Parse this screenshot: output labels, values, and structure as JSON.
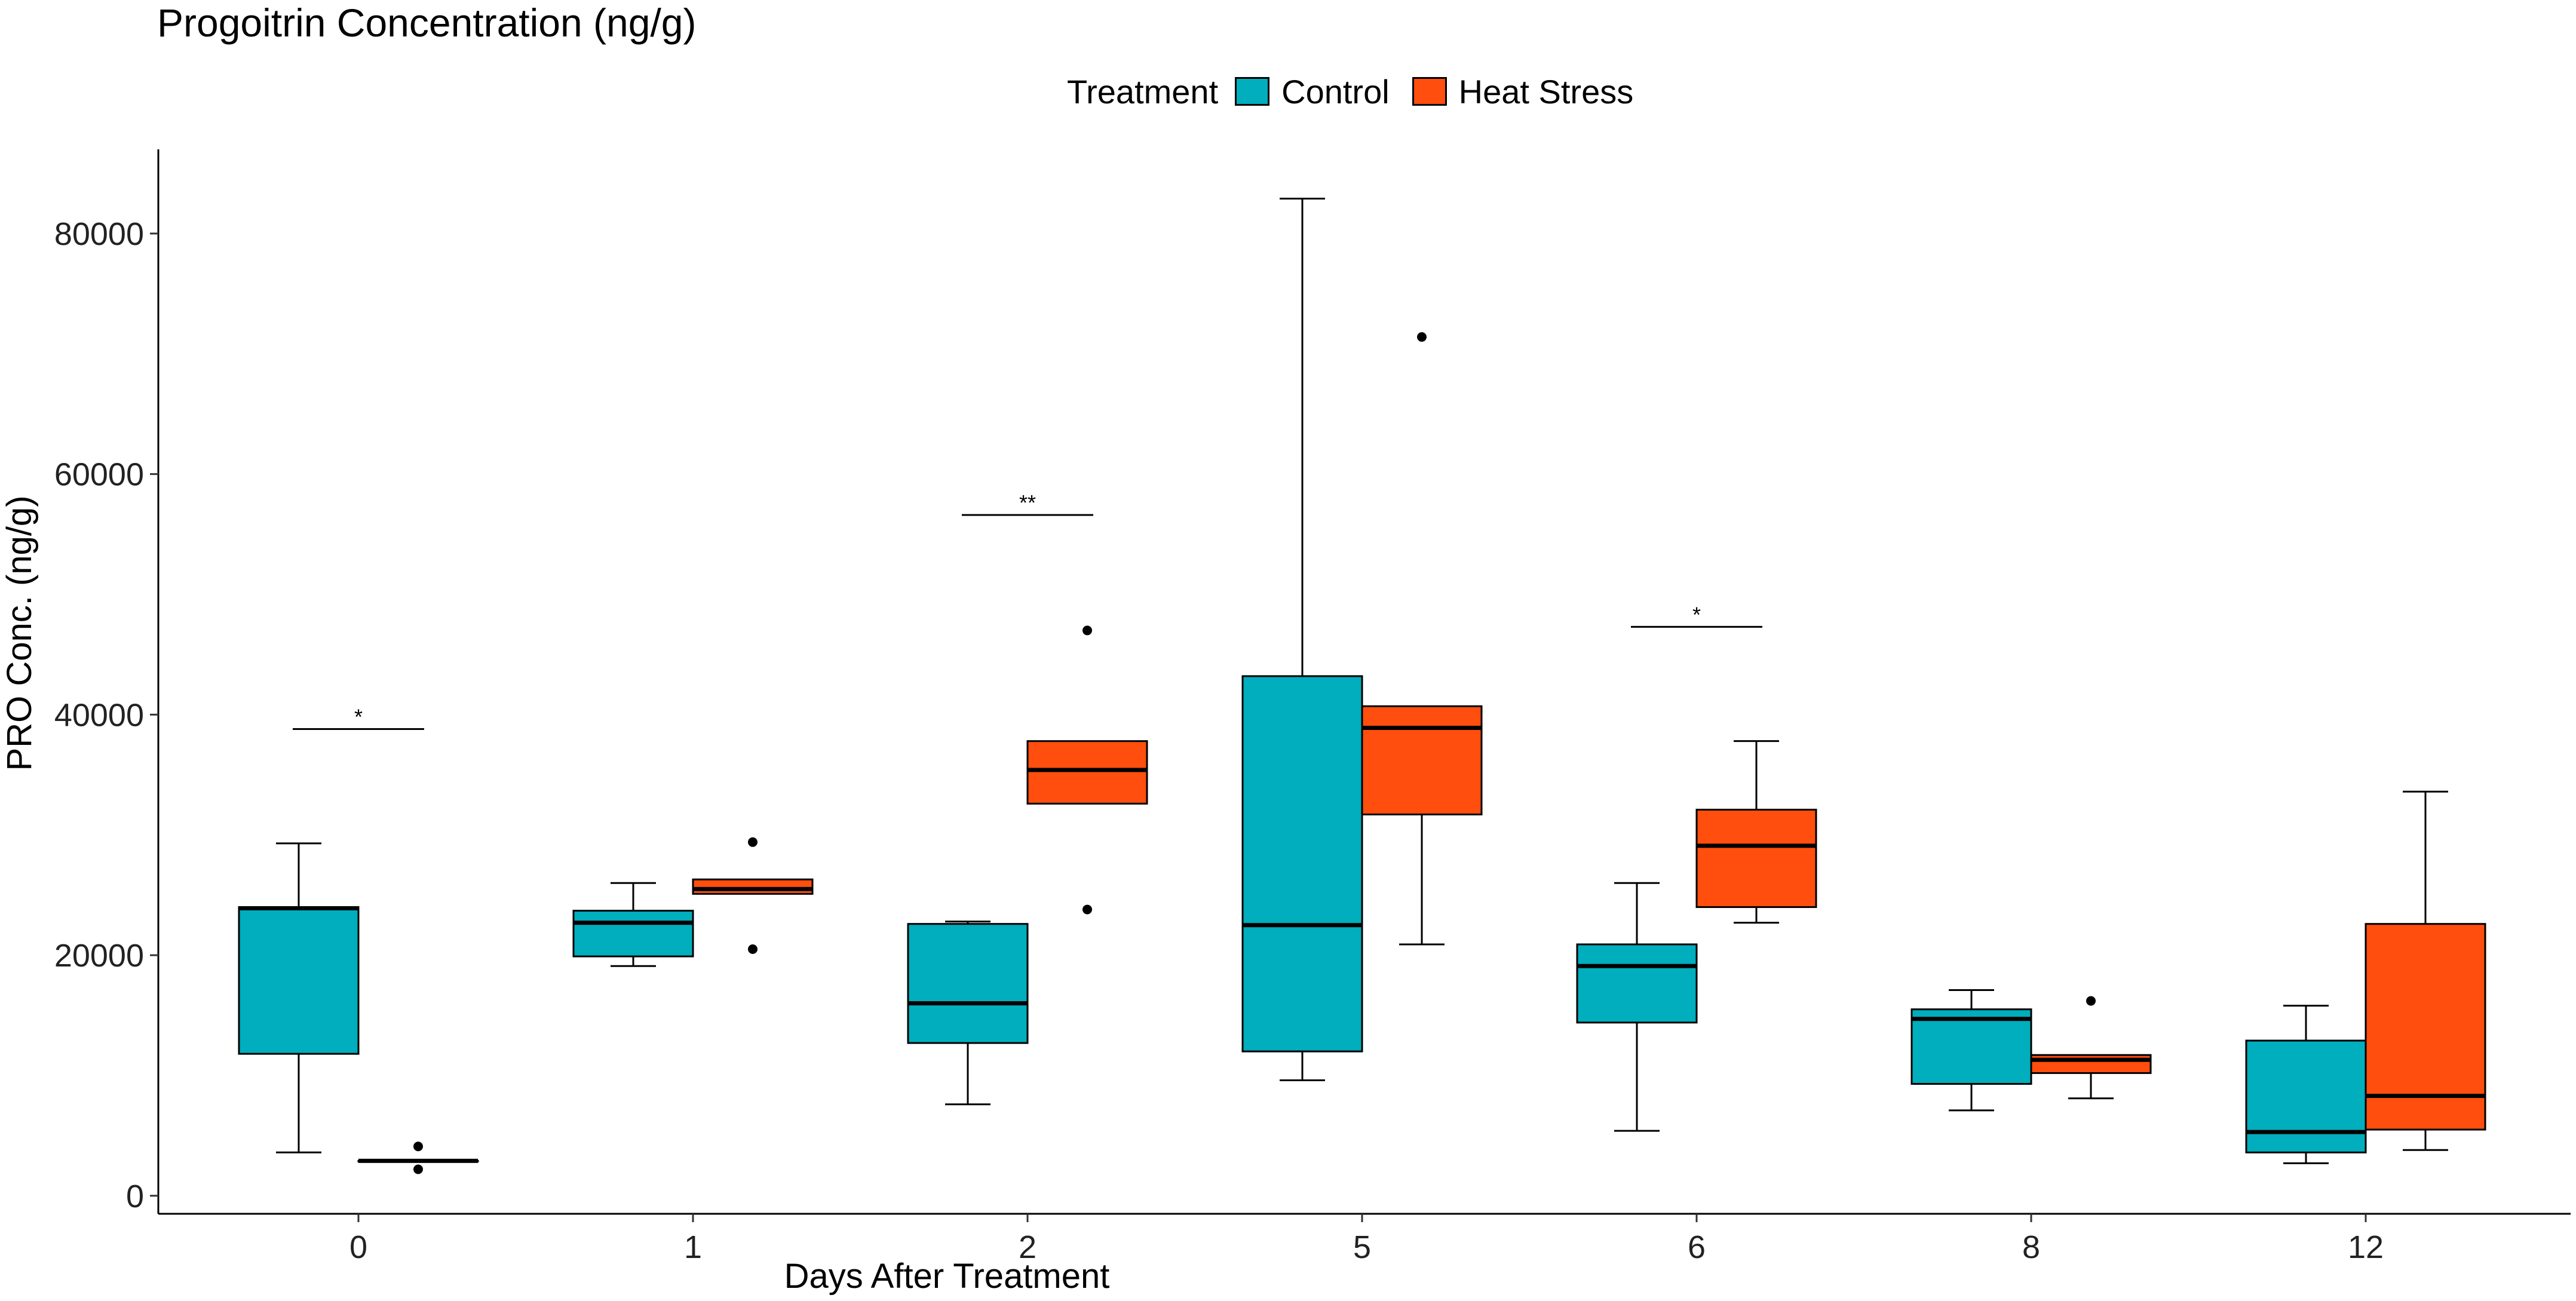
{
  "chart_data": {
    "type": "boxplot",
    "title": "Progoitrin Concentration (ng/g)",
    "xlabel": "Days After Treatment",
    "ylabel": "PRO Conc. (ng/g)",
    "categories": [
      "0",
      "1",
      "2",
      "5",
      "6",
      "8",
      "12"
    ],
    "ylim": [
      -1500,
      87000
    ],
    "yticks": [
      0,
      20000,
      40000,
      60000,
      80000
    ],
    "ytick_labels": [
      "0",
      "20000",
      "40000",
      "60000",
      "80000"
    ],
    "legend": {
      "title": "Treatment",
      "position": "top",
      "entries": [
        {
          "name": "Control",
          "color": "#00AEBD"
        },
        {
          "name": "Heat Stress",
          "color": "#FF4E0D"
        }
      ]
    },
    "series": [
      {
        "name": "Control",
        "color": "#00AEBD",
        "boxes": [
          {
            "category": "0",
            "whisker_low": 3600,
            "q1": 11800,
            "median": 23900,
            "q3": 24000,
            "whisker_high": 29300,
            "outliers": []
          },
          {
            "category": "1",
            "whisker_low": 19100,
            "q1": 19900,
            "median": 22700,
            "q3": 23700,
            "whisker_high": 26000,
            "outliers": []
          },
          {
            "category": "2",
            "whisker_low": 7600,
            "q1": 12700,
            "median": 16000,
            "q3": 22600,
            "whisker_high": 22800,
            "outliers": []
          },
          {
            "category": "5",
            "whisker_low": 9600,
            "q1": 12000,
            "median": 22500,
            "q3": 43200,
            "whisker_high": 82900,
            "outliers": []
          },
          {
            "category": "6",
            "whisker_low": 5400,
            "q1": 14400,
            "median": 19100,
            "q3": 20900,
            "whisker_high": 26000,
            "outliers": []
          },
          {
            "category": "8",
            "whisker_low": 7100,
            "q1": 9300,
            "median": 14700,
            "q3": 15500,
            "whisker_high": 17100,
            "outliers": []
          },
          {
            "category": "12",
            "whisker_low": 2700,
            "q1": 3600,
            "median": 5300,
            "q3": 12900,
            "whisker_high": 15800,
            "outliers": []
          }
        ]
      },
      {
        "name": "Heat Stress",
        "color": "#FF4E0D",
        "boxes": [
          {
            "category": "0",
            "whisker_low": 2900,
            "q1": 2900,
            "median": 2900,
            "q3": 2900,
            "whisker_high": 2900,
            "outliers": [
              2200,
              4100
            ]
          },
          {
            "category": "1",
            "whisker_low": 25100,
            "q1": 25100,
            "median": 25500,
            "q3": 26300,
            "whisker_high": 26300,
            "outliers": [
              20500,
              29400
            ]
          },
          {
            "category": "2",
            "whisker_low": 32600,
            "q1": 32600,
            "median": 35400,
            "q3": 37800,
            "whisker_high": 37800,
            "outliers": [
              23800,
              47000
            ]
          },
          {
            "category": "5",
            "whisker_low": 20900,
            "q1": 31700,
            "median": 38900,
            "q3": 40700,
            "whisker_high": 40700,
            "outliers": [
              71400
            ]
          },
          {
            "category": "6",
            "whisker_low": 22700,
            "q1": 24000,
            "median": 29100,
            "q3": 32100,
            "whisker_high": 37800,
            "outliers": []
          },
          {
            "category": "8",
            "whisker_low": 8100,
            "q1": 10200,
            "median": 11300,
            "q3": 11700,
            "whisker_high": 11700,
            "outliers": [
              16200
            ]
          },
          {
            "category": "12",
            "whisker_low": 3800,
            "q1": 5500,
            "median": 8300,
            "q3": 22600,
            "whisker_high": 33600,
            "outliers": []
          }
        ]
      }
    ],
    "annotations": [
      {
        "category": "0",
        "label": "*",
        "y": 38800
      },
      {
        "category": "2",
        "label": "**",
        "y": 56600
      },
      {
        "category": "6",
        "label": "*",
        "y": 47300
      }
    ]
  }
}
